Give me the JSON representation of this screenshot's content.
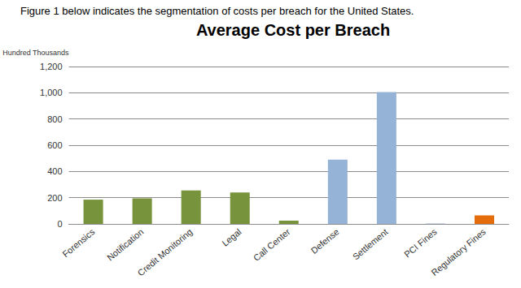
{
  "chart_data": {
    "type": "bar",
    "caption": "Figure 1 below indicates the segmentation of costs per breach for the United States.",
    "title": "Average Cost per Breach",
    "y_label": "Hundred Thousands",
    "categories": [
      "Forensics",
      "Notification",
      "Credit Monitoring",
      "Legal",
      "Call Center",
      "Defense",
      "Settlement",
      "PCI Fines",
      "Regulatory Fines"
    ],
    "values": [
      185,
      195,
      255,
      240,
      25,
      490,
      1005,
      3,
      65
    ],
    "colors": [
      "#77933c",
      "#77933c",
      "#77933c",
      "#77933c",
      "#77933c",
      "#95b3d7",
      "#95b3d7",
      "#95b3d7",
      "#e46c0a"
    ],
    "ylim": [
      0,
      1200
    ],
    "yticks": [
      0,
      200,
      400,
      600,
      800,
      1000,
      1200
    ],
    "grid": true
  }
}
